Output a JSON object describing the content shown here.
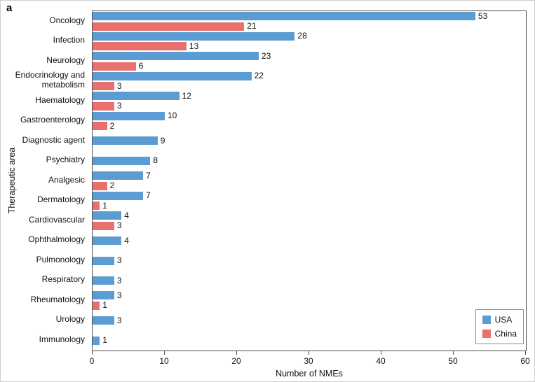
{
  "panel_label": "a",
  "chart_data": {
    "type": "bar",
    "orientation": "horizontal",
    "title": "",
    "xlabel": "Number of NMEs",
    "ylabel": "Therapeutic area",
    "xlim": [
      0,
      60
    ],
    "xticks": [
      0,
      10,
      20,
      30,
      40,
      50,
      60
    ],
    "grid": false,
    "legend_position": "bottom-right",
    "categories": [
      "Oncology",
      "Infection",
      "Neurology",
      "Endocrinology and metabolism",
      "Haematology",
      "Gastroenterology",
      "Diagnostic agent",
      "Psychiatry",
      "Analgesic",
      "Dermatology",
      "Cardiovascular",
      "Ophthalmology",
      "Pulmonology",
      "Respiratory",
      "Rheumatology",
      "Urology",
      "Immunology"
    ],
    "series": [
      {
        "name": "USA",
        "color": "#5b9dd2",
        "values": [
          53,
          28,
          23,
          22,
          12,
          10,
          9,
          8,
          7,
          7,
          4,
          4,
          3,
          3,
          3,
          3,
          1
        ]
      },
      {
        "name": "China",
        "color": "#e8716d",
        "values": [
          21,
          13,
          6,
          3,
          3,
          2,
          null,
          null,
          2,
          1,
          3,
          null,
          null,
          null,
          1,
          null,
          null
        ]
      }
    ]
  }
}
